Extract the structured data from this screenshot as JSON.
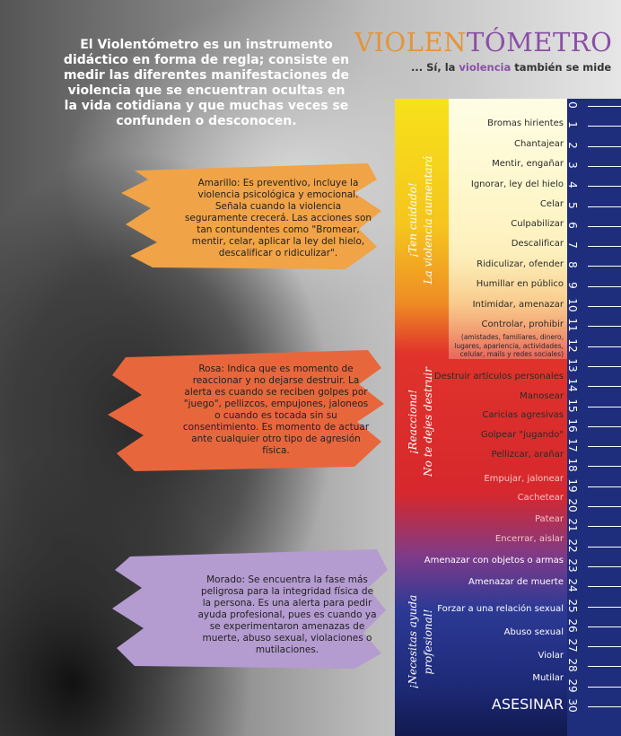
{
  "title_parts": [
    "VIOLEN",
    "TÓMETRO"
  ],
  "subtitle_parts": [
    "... Sí, la ",
    "violencia",
    " también se mide"
  ],
  "intro": "El Violentómetro es un instrumento didáctico en forma de regla; consiste en medir las diferentes manifestaciones de violencia que se encuentran ocultas en la vida cotidiana y que muchas veces se confunden o desconocen.",
  "sections": [
    {
      "text": "Amarillo: Es preventivo, incluye la violencia psicológica y emocional. Señala cuando la violencia seguramente crecerá. Las acciones son tan contundentes como \"Bromear, mentir, celar, aplicar la ley del hielo, descalificar o ridiculizar\".",
      "side_labels": [
        "¡Ten cuidado!",
        "La violencia aumentará"
      ]
    },
    {
      "text": "Rosa: Indica que es momento de reaccionar y no dejarse destruir. La alerta es cuando se reciben golpes por \"juego\", pellizcos, empujones, jaloneos o cuando es tocada sin su consentimiento. Es momento de actuar ante cualquier otro tipo de agresión física.",
      "side_labels": [
        "¡Reacciona!",
        "No te dejes destruir"
      ]
    },
    {
      "text": "Morado: Se encuentra la fase más peligrosa para la integridad física de la persona. Es una alerta para pedir ayuda profesional, pues es cuando ya se experimentaron amenazas de muerte, abuso sexual, violaciones o mutilaciones.",
      "side_labels": [
        "¡Necesitas ayuda",
        "profesional!"
      ]
    }
  ],
  "items": [
    {
      "label": "Bromas hirientes"
    },
    {
      "label": "Chantajear"
    },
    {
      "label": "Mentir, engañar"
    },
    {
      "label": "Ignorar, ley del hielo"
    },
    {
      "label": "Celar"
    },
    {
      "label": "Culpabilizar"
    },
    {
      "label": "Descalificar"
    },
    {
      "label": "Ridiculizar, ofender"
    },
    {
      "label": "Humillar en público"
    },
    {
      "label": "Intimidar, amenazar"
    },
    {
      "label": "Controlar, prohibir",
      "detail": "(amistades, familiares, dinero, lugares, apariencia, actividades, celular, mails y redes sociales)"
    },
    {
      "label": "Destruir artículos personales"
    },
    {
      "label": "Manosear"
    },
    {
      "label": "Caricias agresivas"
    },
    {
      "label": "Golpear \"jugando\""
    },
    {
      "label": "Pellizcar, arañar"
    },
    {
      "label": "Empujar, jalonear"
    },
    {
      "label": "Cachetear"
    },
    {
      "label": "Patear"
    },
    {
      "label": "Encerrar, aislar"
    },
    {
      "label": "Amenazar con objetos o armas"
    },
    {
      "label": "Amenazar de muerte"
    },
    {
      "label": "Forzar a una relación sexual"
    },
    {
      "label": "Abuso sexual"
    },
    {
      "label": "Violar"
    },
    {
      "label": "Mutilar"
    },
    {
      "label": "ASESINAR"
    }
  ],
  "scale": [
    0,
    1,
    2,
    3,
    4,
    5,
    6,
    7,
    8,
    9,
    10,
    11,
    12,
    13,
    14,
    15,
    16,
    17,
    18,
    19,
    20,
    21,
    22,
    23,
    24,
    25,
    26,
    27,
    28,
    29,
    30
  ]
}
